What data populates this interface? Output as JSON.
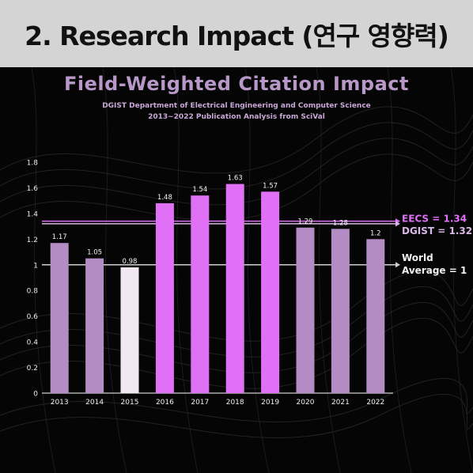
{
  "header": {
    "title": "2. Research Impact (연구 영향력)"
  },
  "chart_data": {
    "type": "bar",
    "title": "Field-Weighted Citation Impact",
    "subtitle_lines": [
      "DGIST Department of Electrical Engineering and Computer Science",
      "2013~2022 Publication Analysis from SciVal"
    ],
    "categories": [
      "2013",
      "2014",
      "2015",
      "2016",
      "2017",
      "2018",
      "2019",
      "2020",
      "2021",
      "2022"
    ],
    "values": [
      1.17,
      1.05,
      0.98,
      1.48,
      1.54,
      1.63,
      1.57,
      1.29,
      1.28,
      1.2
    ],
    "value_labels": [
      "1.17",
      "1.05",
      "0.98",
      "1.48",
      "1.54",
      "1.63",
      "1.57",
      "1.29",
      "1.28",
      "1.2"
    ],
    "bar_colors": [
      "#b48cc4",
      "#b48cc4",
      "#f2e8f2",
      "#e070f5",
      "#e070f5",
      "#e070f5",
      "#e070f5",
      "#b48cc4",
      "#b48cc4",
      "#b48cc4"
    ],
    "ylim": [
      0,
      1.8
    ],
    "yticks": [
      0,
      0.2,
      0.4,
      0.6,
      0.8,
      1,
      1.2,
      1.4,
      1.6,
      1.8
    ],
    "ytick_labels": [
      "0",
      "0.2",
      "0.4",
      "0.6",
      "0.8",
      "1",
      "1.2",
      "1.4",
      "1.6",
      "1.8"
    ],
    "reference_lines": [
      {
        "label": "EECS = 1.34",
        "value": 1.34,
        "color": "#e070f5"
      },
      {
        "label": "DGIST = 1.32",
        "value": 1.32,
        "color": "#d8b8e8"
      },
      {
        "label_lines": [
          "World",
          "Average = 1"
        ],
        "value": 1,
        "color": "#d0d0d0"
      }
    ],
    "grid": false
  }
}
